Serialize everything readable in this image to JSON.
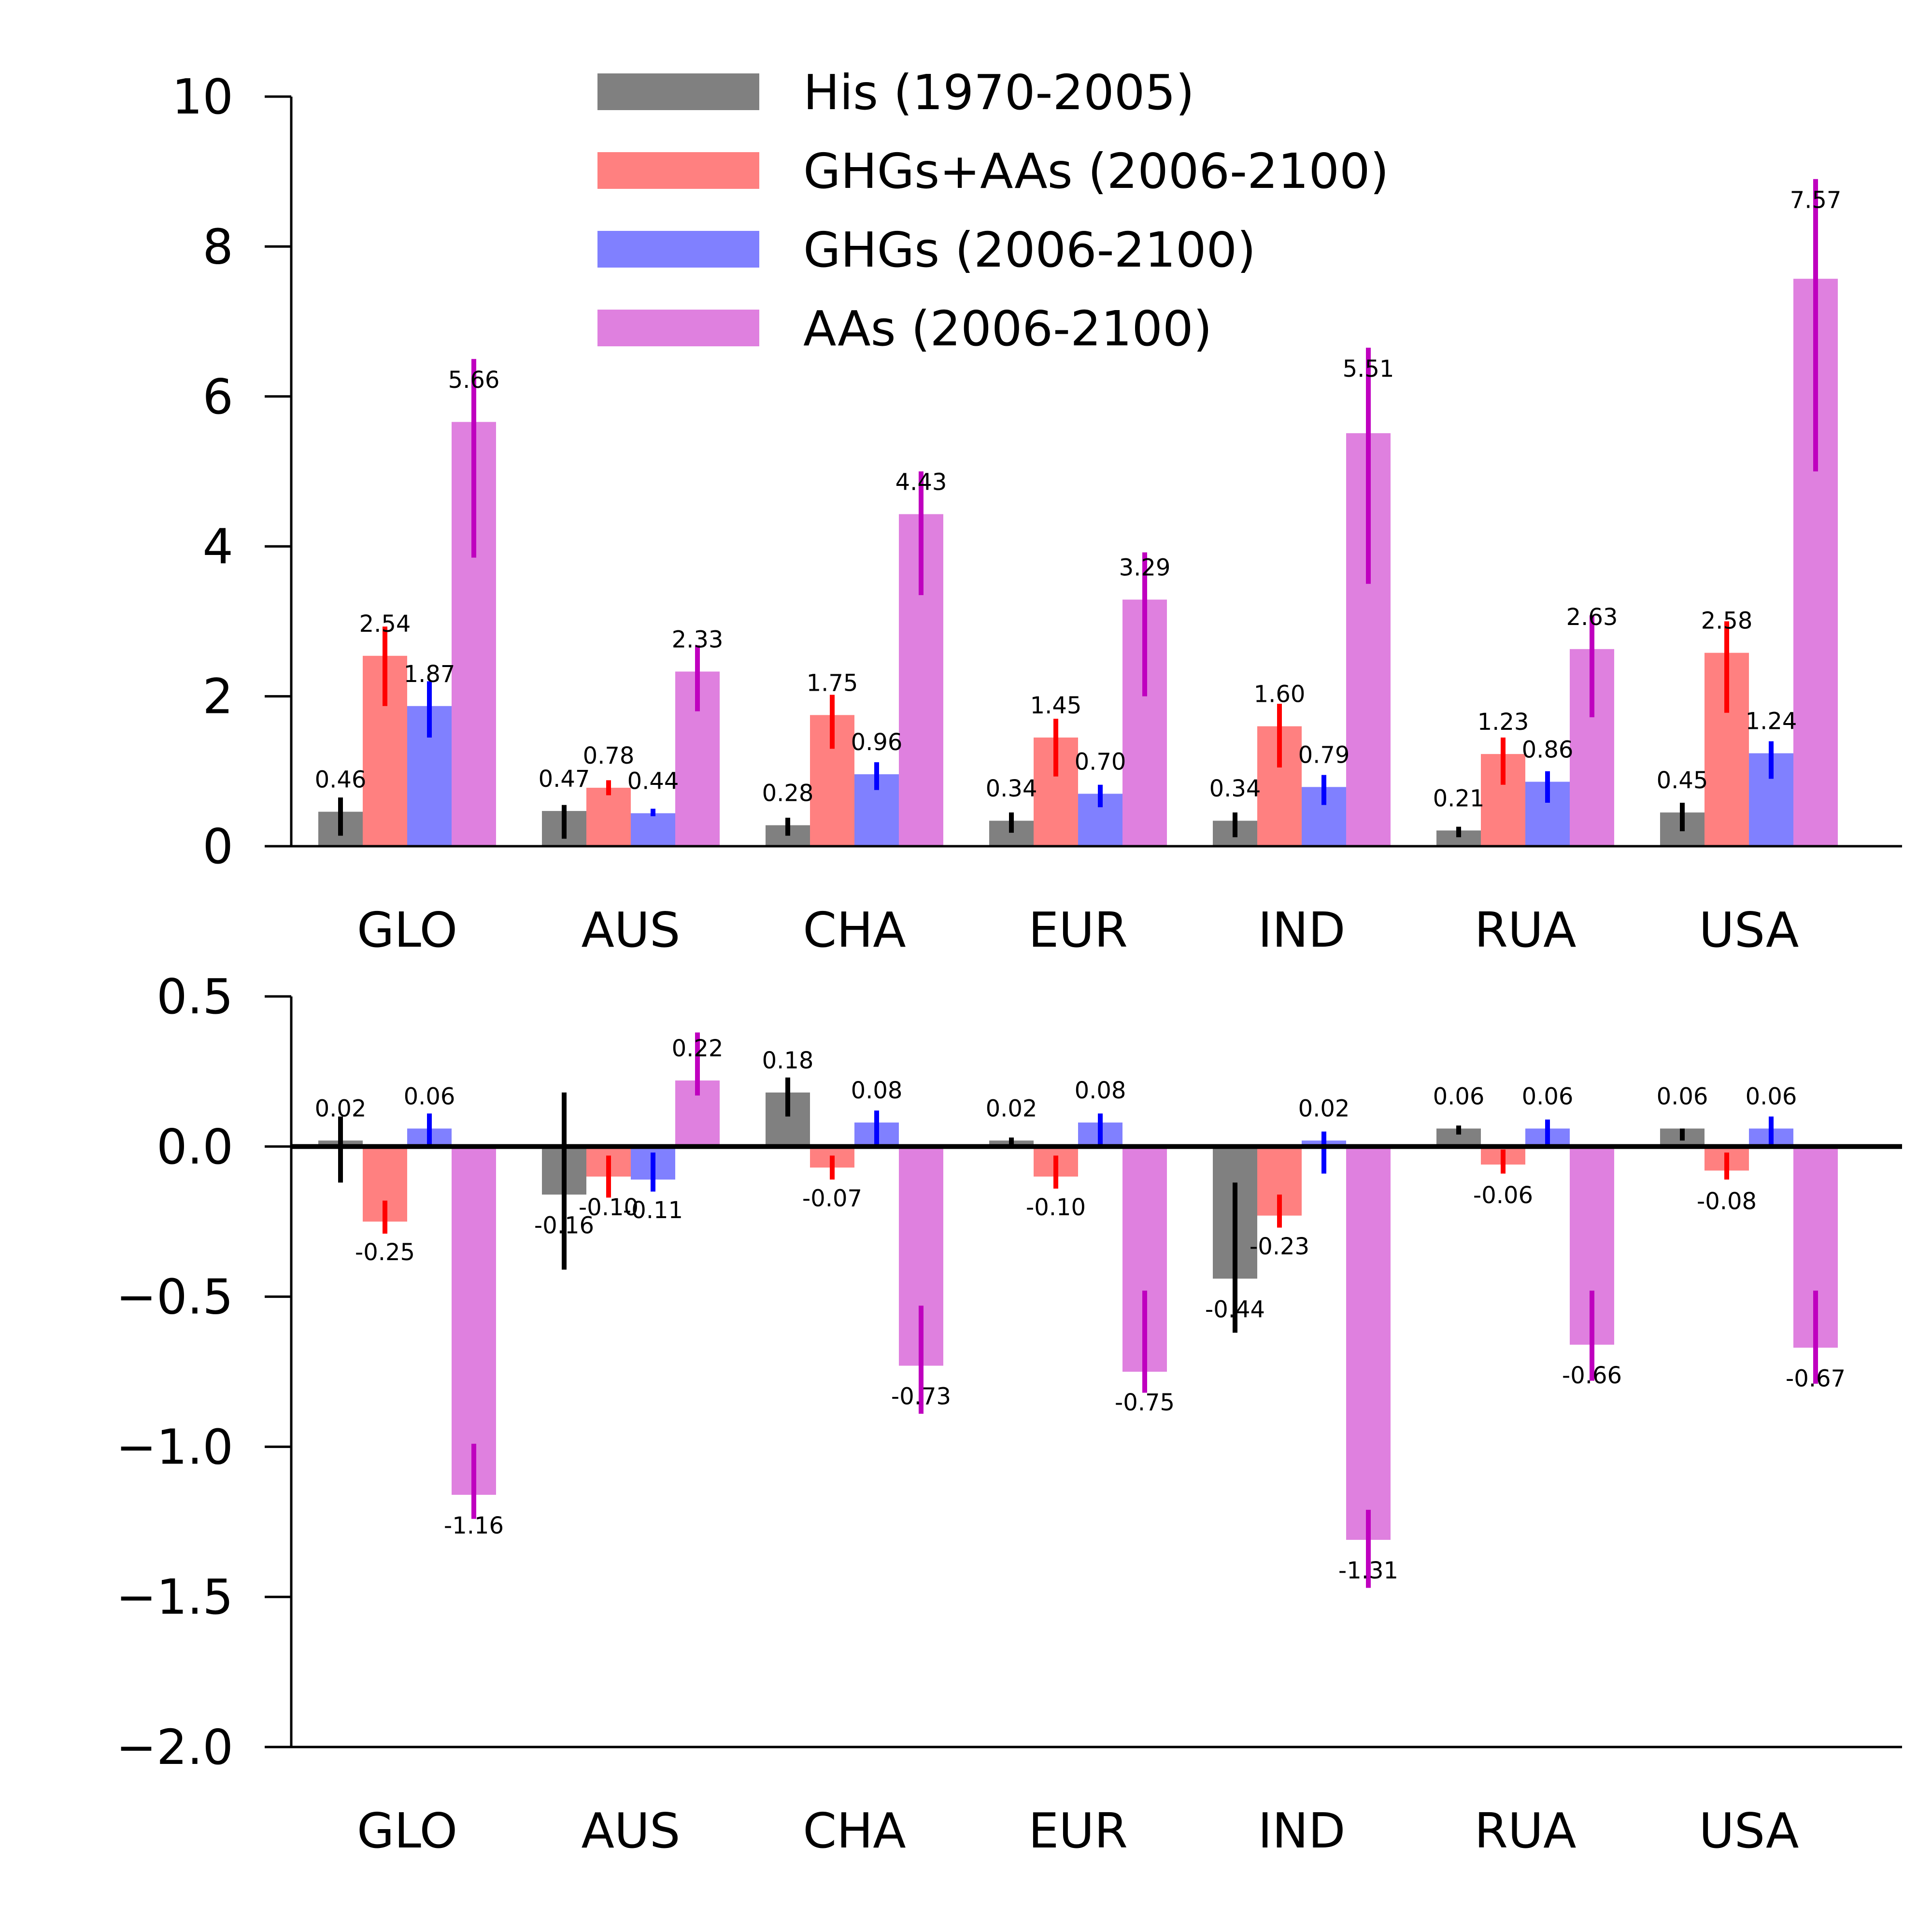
{
  "legend": {
    "placement": "top-center",
    "entries": [
      {
        "label": "His (1970-2005)",
        "color": "#808080"
      },
      {
        "label": "GHGs+AAs (2006-2100)",
        "color": "#ff8080"
      },
      {
        "label": "GHGs (2006-2100)",
        "color": "#8080ff"
      },
      {
        "label": "AAs (2006-2100)",
        "color": "#df80df"
      }
    ]
  },
  "chart_data": [
    {
      "type": "bar",
      "title": "",
      "xlabel": "",
      "ylabel": "",
      "ylim": [
        0,
        10
      ],
      "yticks": [
        "0",
        "2",
        "4",
        "6",
        "8",
        "10"
      ],
      "grid": false,
      "categories": [
        "GLO",
        "AUS",
        "CHA",
        "EUR",
        "IND",
        "RUA",
        "USA"
      ],
      "series": [
        {
          "name": "His (1970-2005)",
          "color": "#808080",
          "error_color": "#000000",
          "values": [
            0.46,
            0.47,
            0.28,
            0.34,
            0.34,
            0.21,
            0.45
          ],
          "labels": [
            "0.46",
            "0.47",
            "0.28",
            "0.34",
            "0.34",
            "0.21",
            "0.45"
          ],
          "err_low": [
            0.14,
            0.1,
            0.14,
            0.18,
            0.12,
            0.12,
            0.2
          ],
          "err_high": [
            0.65,
            0.55,
            0.38,
            0.45,
            0.45,
            0.26,
            0.58
          ]
        },
        {
          "name": "GHGs+AAs (2006-2100)",
          "color": "#ff8080",
          "error_color": "#ff0000",
          "values": [
            2.54,
            0.78,
            1.75,
            1.45,
            1.6,
            1.23,
            2.58
          ],
          "labels": [
            "2.54",
            "0.78",
            "1.75",
            "1.45",
            "1.60",
            "1.23",
            "2.58"
          ],
          "err_low": [
            1.87,
            0.68,
            1.3,
            0.93,
            1.05,
            0.82,
            1.78
          ],
          "err_high": [
            2.93,
            0.88,
            2.02,
            1.7,
            1.9,
            1.45,
            3.0
          ]
        },
        {
          "name": "GHGs (2006-2100)",
          "color": "#8080ff",
          "error_color": "#0000ff",
          "values": [
            1.87,
            0.44,
            0.96,
            0.7,
            0.79,
            0.86,
            1.24
          ],
          "labels": [
            "1.87",
            "0.44",
            "0.96",
            "0.70",
            "0.79",
            "0.86",
            "1.24"
          ],
          "err_low": [
            1.45,
            0.4,
            0.75,
            0.52,
            0.55,
            0.58,
            0.9
          ],
          "err_high": [
            2.2,
            0.5,
            1.12,
            0.82,
            0.95,
            1.0,
            1.4
          ]
        },
        {
          "name": "AAs (2006-2100)",
          "color": "#df80df",
          "error_color": "#bf00bf",
          "values": [
            5.66,
            2.33,
            4.43,
            3.29,
            5.51,
            2.63,
            7.57
          ],
          "labels": [
            "5.66",
            "2.33",
            "4.43",
            "3.29",
            "5.51",
            "2.63",
            "7.57"
          ],
          "err_low": [
            3.85,
            1.8,
            3.35,
            2.0,
            3.5,
            1.72,
            5.0
          ],
          "err_high": [
            6.5,
            2.68,
            5.0,
            3.92,
            6.65,
            3.08,
            8.9
          ]
        }
      ]
    },
    {
      "type": "bar",
      "title": "",
      "xlabel": "",
      "ylabel": "",
      "ylim": [
        -2.0,
        0.5
      ],
      "yticks": [
        "0.5",
        "0.0",
        "−0.5",
        "−1.0",
        "−1.5",
        "−2.0"
      ],
      "ytick_values": [
        0.5,
        0.0,
        -0.5,
        -1.0,
        -1.5,
        -2.0
      ],
      "grid": false,
      "zero_line": true,
      "categories": [
        "GLO",
        "AUS",
        "CHA",
        "EUR",
        "IND",
        "RUA",
        "USA"
      ],
      "series": [
        {
          "name": "His (1970-2005)",
          "color": "#808080",
          "error_color": "#000000",
          "values": [
            0.02,
            -0.16,
            0.18,
            0.02,
            -0.44,
            0.06,
            0.06
          ],
          "labels": [
            "0.02",
            "-0.16",
            "0.18",
            "0.02",
            "-0.44",
            "0.06",
            "0.06"
          ],
          "err_low": [
            -0.12,
            -0.41,
            0.1,
            0.0,
            -0.62,
            0.04,
            0.02
          ],
          "err_high": [
            0.1,
            0.18,
            0.23,
            0.03,
            -0.12,
            0.07,
            0.06
          ]
        },
        {
          "name": "GHGs+AAs (2006-2100)",
          "color": "#ff8080",
          "error_color": "#ff0000",
          "values": [
            -0.25,
            -0.1,
            -0.07,
            -0.1,
            -0.23,
            -0.06,
            -0.08
          ],
          "labels": [
            "-0.25",
            "-0.10",
            "-0.07",
            "-0.10",
            "-0.23",
            "-0.06",
            "-0.08"
          ],
          "err_low": [
            -0.29,
            -0.17,
            -0.11,
            -0.14,
            -0.27,
            -0.09,
            -0.11
          ],
          "err_high": [
            -0.18,
            -0.03,
            -0.03,
            -0.03,
            -0.16,
            -0.01,
            -0.02
          ]
        },
        {
          "name": "GHGs (2006-2100)",
          "color": "#8080ff",
          "error_color": "#0000ff",
          "values": [
            0.06,
            -0.11,
            0.08,
            0.08,
            0.02,
            0.06,
            0.06
          ],
          "labels": [
            "0.06",
            "-0.11",
            "0.08",
            "0.08",
            "0.02",
            "0.06",
            "0.06"
          ],
          "err_low": [
            0.0,
            -0.15,
            0.0,
            0.0,
            -0.09,
            0.0,
            0.0
          ],
          "err_high": [
            0.11,
            -0.02,
            0.12,
            0.11,
            0.05,
            0.09,
            0.1
          ]
        },
        {
          "name": "AAs (2006-2100)",
          "color": "#df80df",
          "error_color": "#bf00bf",
          "values": [
            -1.16,
            0.22,
            -0.73,
            -0.75,
            -1.31,
            -0.66,
            -0.67
          ],
          "labels": [
            "-1.16",
            "0.22",
            "-0.73",
            "-0.75",
            "-1.31",
            "-0.66",
            "-0.67"
          ],
          "err_low": [
            -1.24,
            0.17,
            -0.89,
            -0.82,
            -1.47,
            -0.78,
            -0.79
          ],
          "err_high": [
            -0.99,
            0.38,
            -0.53,
            -0.48,
            -1.21,
            -0.48,
            -0.48
          ]
        }
      ]
    }
  ]
}
